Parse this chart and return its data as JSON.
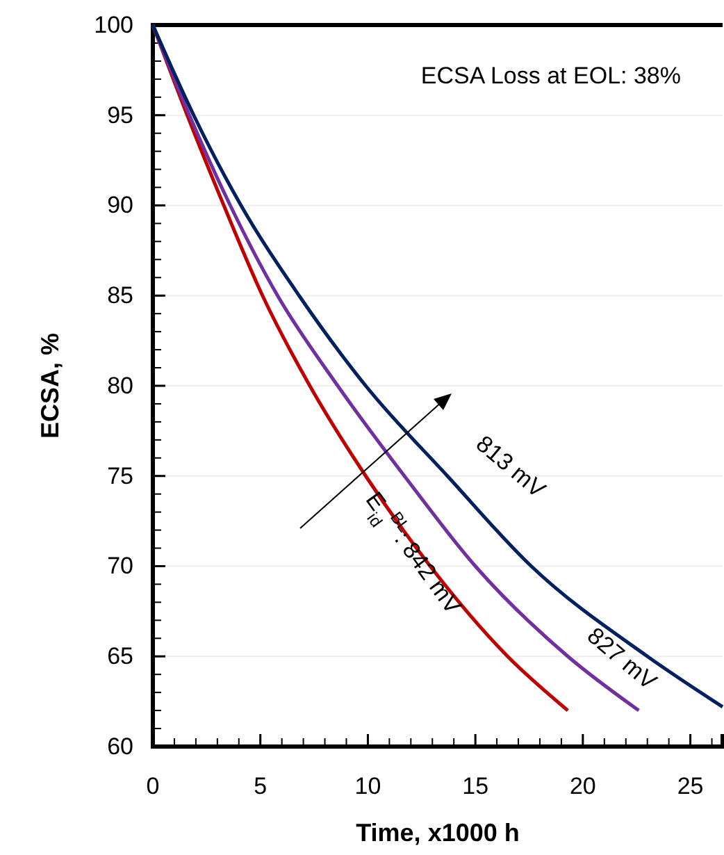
{
  "chart_data": {
    "type": "line",
    "xlabel": "Time, x1000 h",
    "ylabel": "ECSA, %",
    "xlim": [
      0,
      26.5
    ],
    "xticks": [
      0,
      5,
      10,
      15,
      20,
      25
    ],
    "ylim": [
      60,
      100
    ],
    "yticks": [
      60,
      65,
      70,
      75,
      80,
      85,
      90,
      95,
      100
    ],
    "grid": "y",
    "line_style": "solid",
    "marker": "none",
    "annotations": [
      "ECSA Loss at EOL: 38%"
    ],
    "series": [
      {
        "name": "E$_{id}$$^{BL}$: 842 mV",
        "color": "#c00000",
        "x": [
          0,
          1.6,
          3.3,
          5.1,
          7.3,
          9.9,
          12.9,
          16.5,
          19.3
        ],
        "values": [
          100,
          95,
          90,
          85,
          80,
          75,
          70,
          65,
          62
        ]
      },
      {
        "name": "827 mV",
        "color": "#7030a0",
        "x": [
          0,
          1.7,
          3.6,
          5.8,
          8.6,
          11.7,
          15.0,
          19.3,
          22.6
        ],
        "values": [
          100,
          95,
          90,
          85,
          80,
          75,
          70,
          65,
          62
        ]
      },
      {
        "name": "813 mV",
        "color": "#002060",
        "x": [
          0,
          1.9,
          4.1,
          6.8,
          9.9,
          13.7,
          17.6,
          23.0,
          26.5
        ],
        "values": [
          100,
          95,
          90,
          85,
          80,
          75,
          70,
          65,
          62.2
        ]
      }
    ]
  }
}
